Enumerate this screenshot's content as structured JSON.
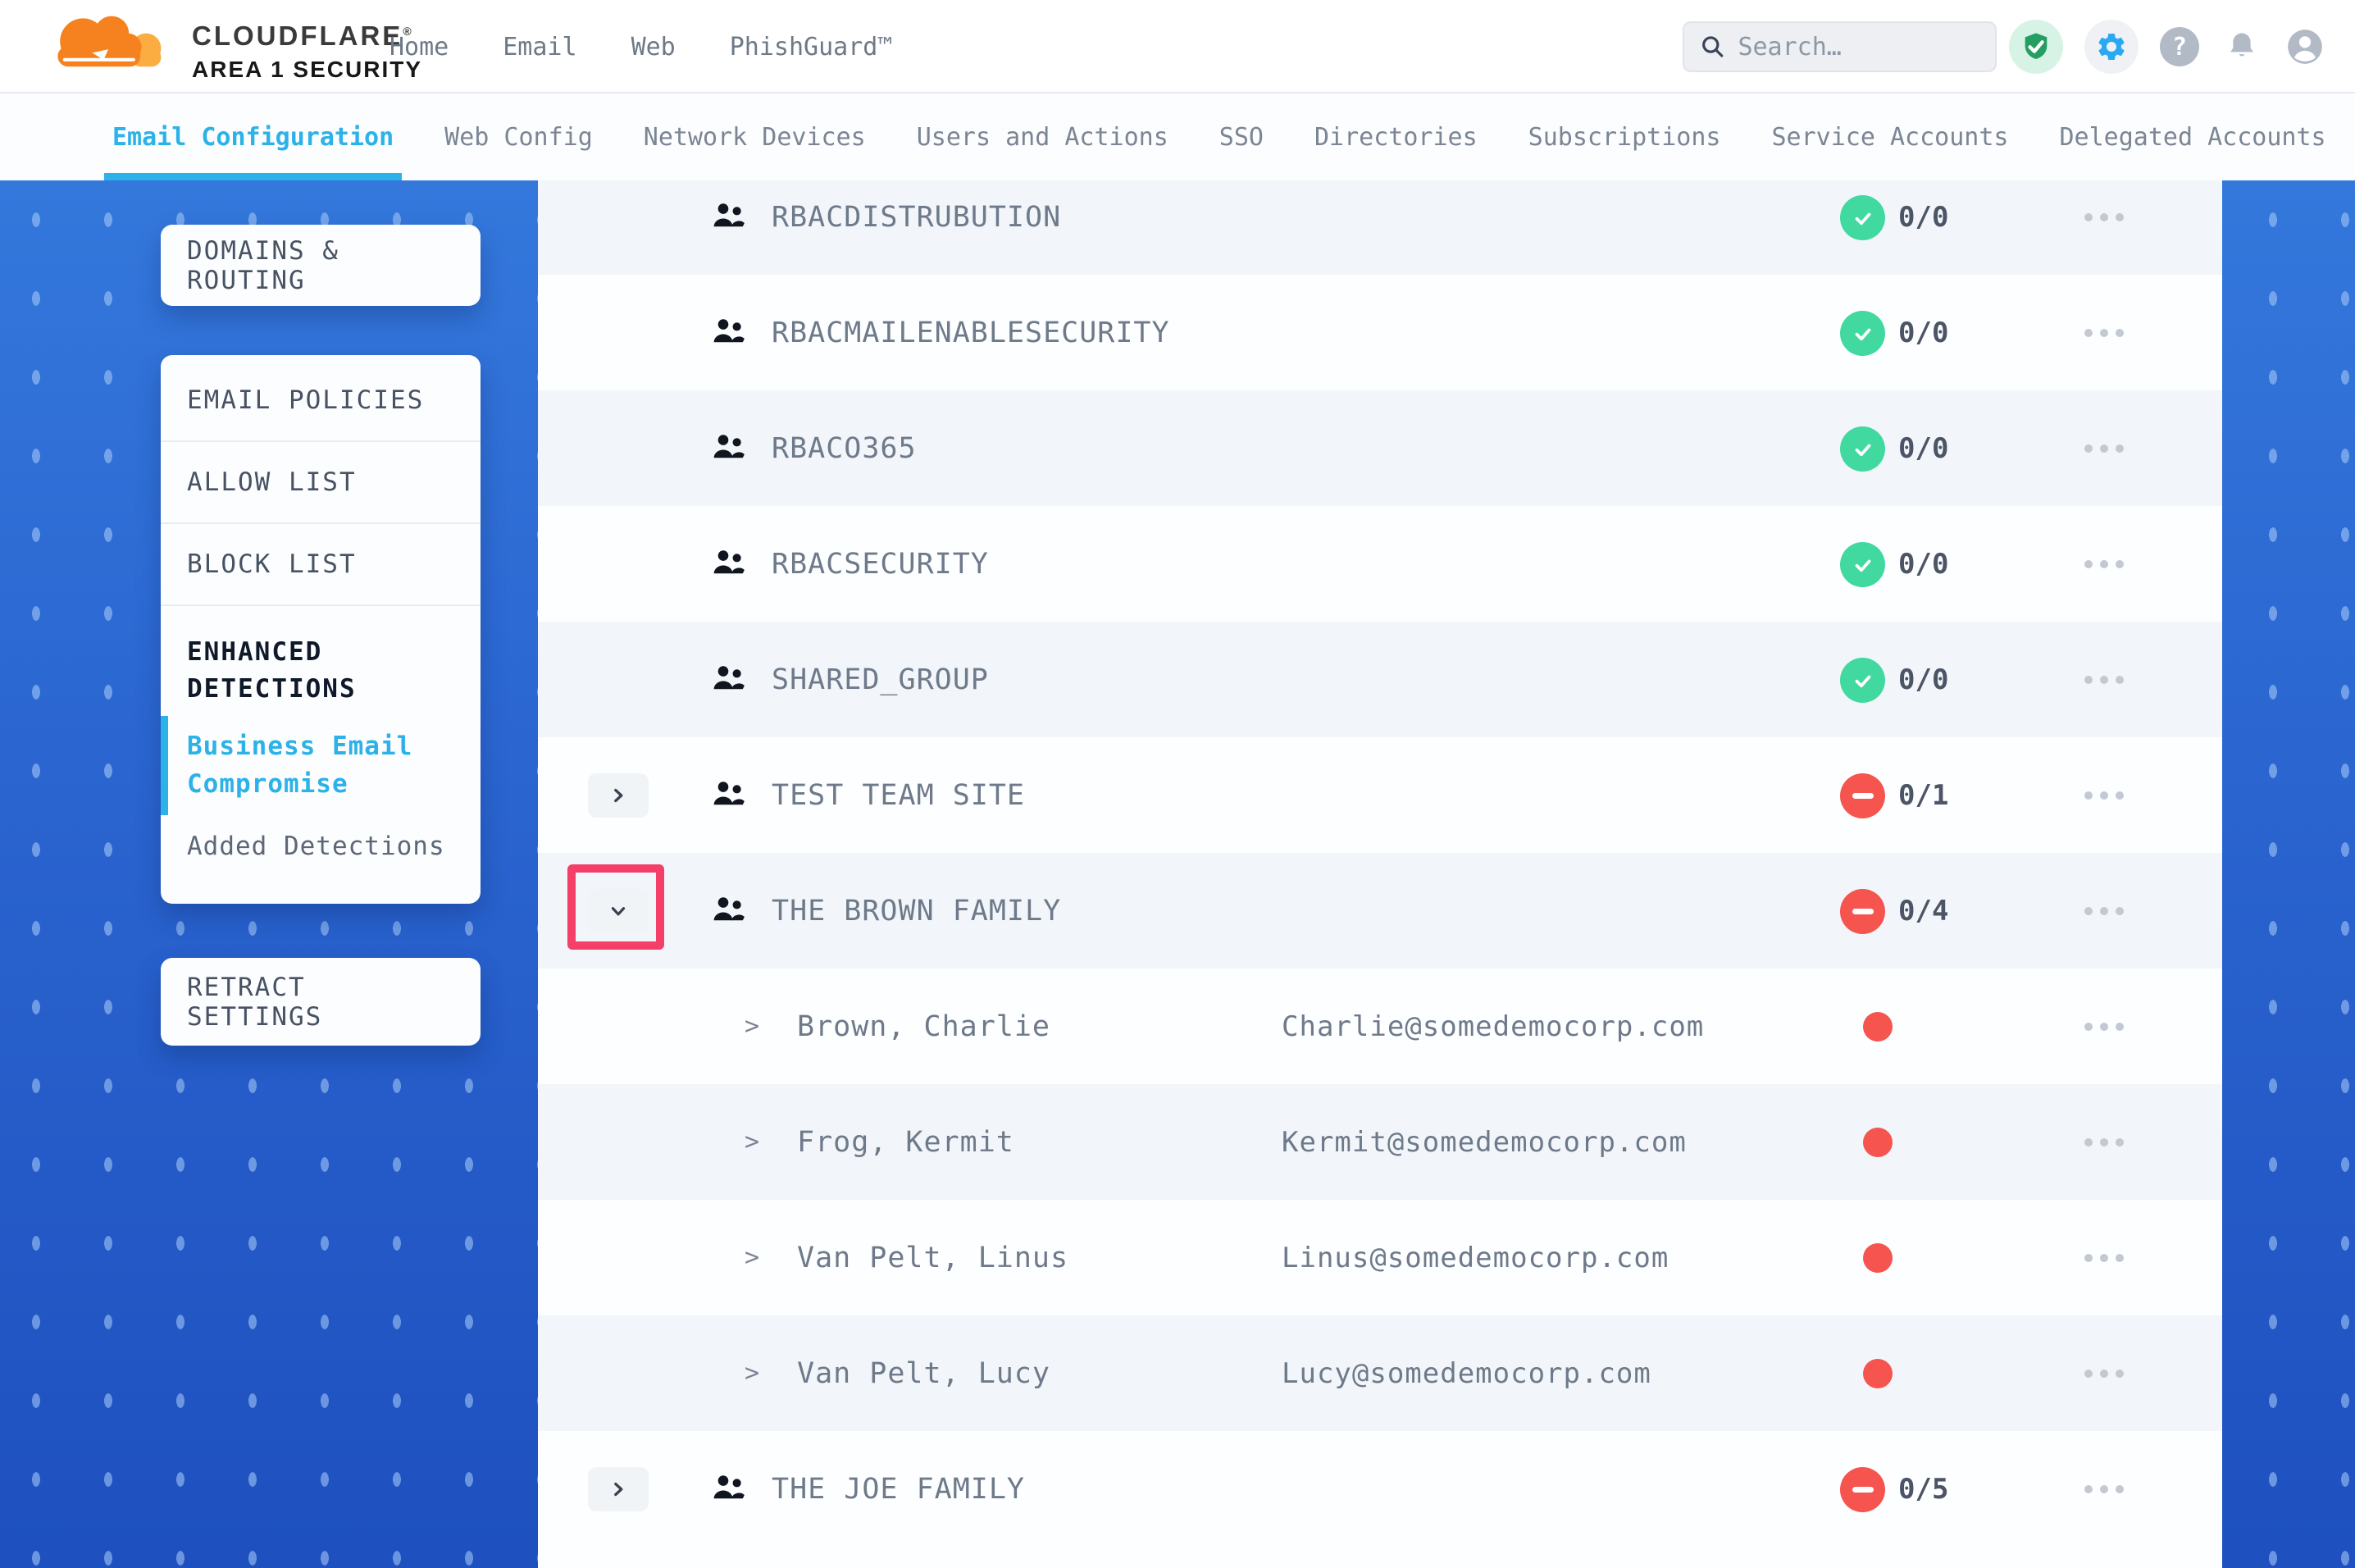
{
  "colors": {
    "accent": "#2CB2E8",
    "pass_green": "#41D9A0",
    "fail_red": "#F5544F",
    "highlight_pink": "#F43F68",
    "bg_blue_top": "#3478DC",
    "bg_blue_bottom": "#1E50BF"
  },
  "header": {
    "logo": {
      "title": "CLOUDFLARE",
      "mark": "®",
      "subtitle": "AREA 1 SECURITY"
    },
    "nav": [
      {
        "label": "Home"
      },
      {
        "label": "Email"
      },
      {
        "label": "Web"
      },
      {
        "label": "PhishGuard™"
      }
    ],
    "search": {
      "placeholder": "Search…"
    },
    "icons": [
      {
        "name": "shield-check-icon"
      },
      {
        "name": "gear-icon"
      },
      {
        "name": "help-icon",
        "glyph": "?"
      },
      {
        "name": "bell-icon"
      },
      {
        "name": "avatar-icon"
      }
    ]
  },
  "tabs": [
    {
      "label": "Email Configuration",
      "active": true
    },
    {
      "label": "Web Config",
      "active": false
    },
    {
      "label": "Network Devices",
      "active": false
    },
    {
      "label": "Users and Actions",
      "active": false
    },
    {
      "label": "SSO",
      "active": false
    },
    {
      "label": "Directories",
      "active": false
    },
    {
      "label": "Subscriptions",
      "active": false
    },
    {
      "label": "Service Accounts",
      "active": false
    },
    {
      "label": "Delegated Accounts",
      "active": false
    }
  ],
  "sidebar": {
    "cards": [
      {
        "items": [
          {
            "label": "DOMAINS & ROUTING",
            "style": "plain"
          }
        ]
      },
      {
        "items": [
          {
            "label": "EMAIL POLICIES",
            "style": "plain"
          },
          {
            "label": "ALLOW LIST",
            "style": "plain"
          },
          {
            "label": "BLOCK LIST",
            "style": "plain"
          },
          {
            "label": "ENHANCED DETECTIONS",
            "style": "section"
          },
          {
            "label": "Business Email Compromise",
            "style": "active-sub"
          },
          {
            "label": "Added Detections",
            "style": "sub"
          }
        ]
      },
      {
        "items": [
          {
            "label": "RETRACT SETTINGS",
            "style": "plain"
          }
        ]
      }
    ]
  },
  "list": {
    "rows": [
      {
        "kind": "group",
        "name": "RBACDISTRUBUTION",
        "expand": "none",
        "status": "pass",
        "count": "0/0",
        "highlight": false
      },
      {
        "kind": "group",
        "name": "RBACMAILENABLESECURITY",
        "expand": "none",
        "status": "pass",
        "count": "0/0",
        "highlight": false
      },
      {
        "kind": "group",
        "name": "RBACO365",
        "expand": "none",
        "status": "pass",
        "count": "0/0",
        "highlight": false
      },
      {
        "kind": "group",
        "name": "RBACSECURITY",
        "expand": "none",
        "status": "pass",
        "count": "0/0",
        "highlight": false
      },
      {
        "kind": "group",
        "name": "SHARED_GROUP",
        "expand": "none",
        "status": "pass",
        "count": "0/0",
        "highlight": false
      },
      {
        "kind": "group",
        "name": "TEST TEAM SITE",
        "expand": "right",
        "status": "fail",
        "count": "0/1",
        "highlight": false
      },
      {
        "kind": "group",
        "name": "THE BROWN FAMILY",
        "expand": "down",
        "status": "fail",
        "count": "0/4",
        "highlight": true
      },
      {
        "kind": "member",
        "name": "Brown, Charlie",
        "chevron": ">",
        "email": "Charlie@somedemocorp.com",
        "status": "dot"
      },
      {
        "kind": "member",
        "name": "Frog, Kermit",
        "chevron": ">",
        "email": "Kermit@somedemocorp.com",
        "status": "dot"
      },
      {
        "kind": "member",
        "name": "Van Pelt, Linus",
        "chevron": ">",
        "email": "Linus@somedemocorp.com",
        "status": "dot"
      },
      {
        "kind": "member",
        "name": "Van Pelt, Lucy",
        "chevron": ">",
        "email": "Lucy@somedemocorp.com",
        "status": "dot"
      },
      {
        "kind": "group",
        "name": "THE JOE FAMILY",
        "expand": "right",
        "status": "fail",
        "count": "0/5",
        "highlight": false
      }
    ]
  }
}
